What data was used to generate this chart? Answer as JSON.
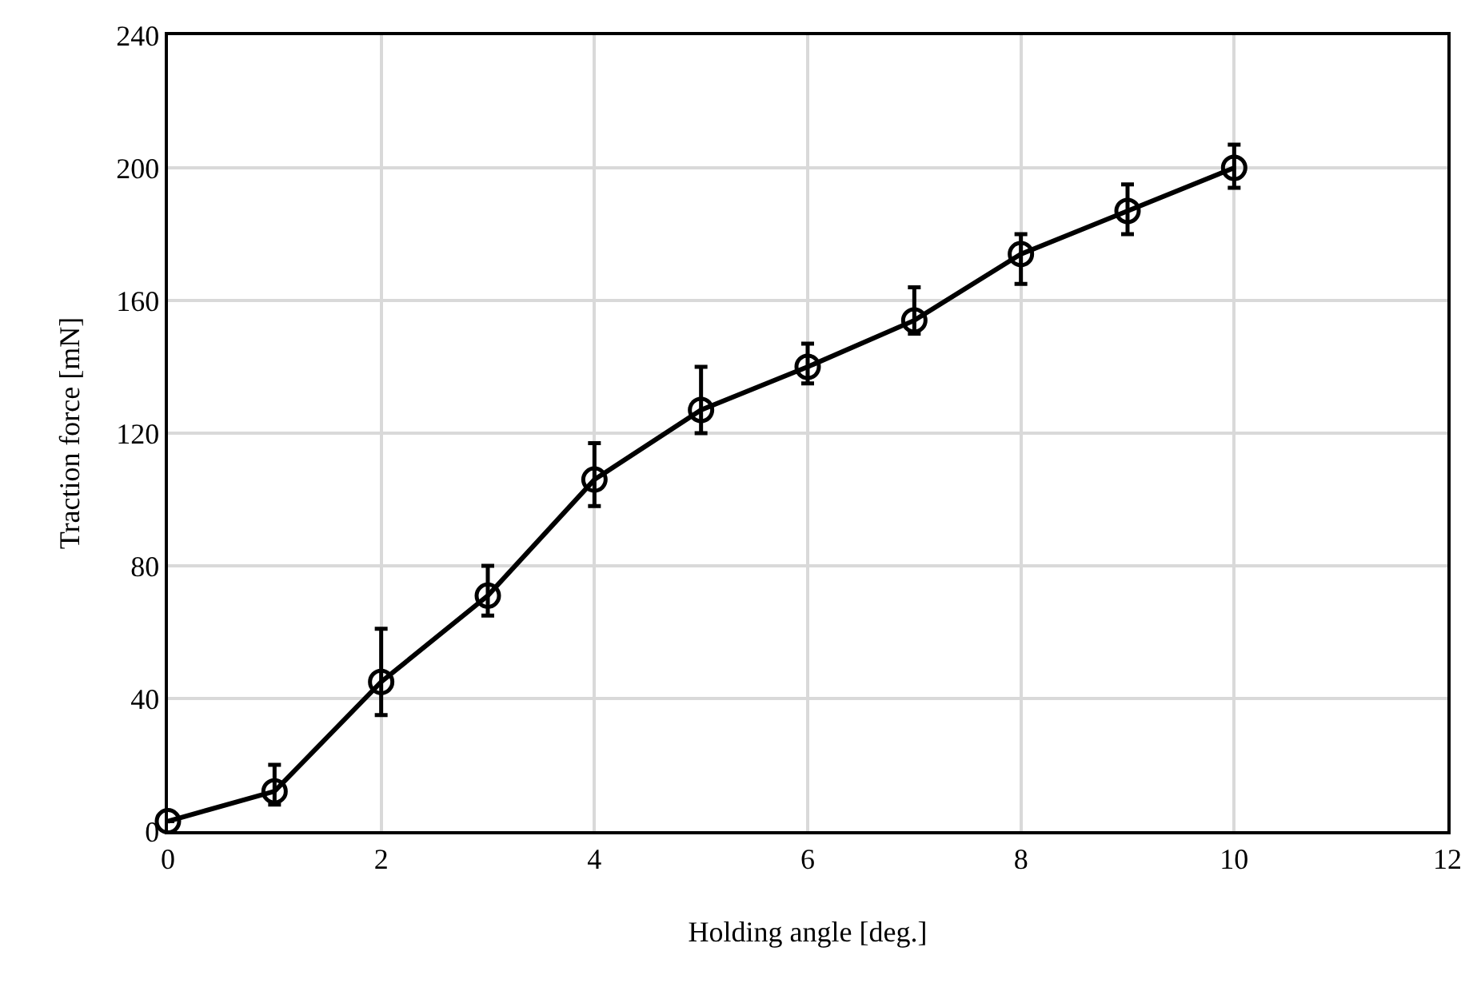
{
  "chart_data": {
    "type": "line",
    "xlabel": "Holding angle [deg.]",
    "ylabel": "Traction force [mN]",
    "x": [
      0,
      1,
      2,
      3,
      4,
      5,
      6,
      7,
      8,
      9,
      10
    ],
    "series": [
      {
        "color": "#000000",
        "values": [
          3,
          12,
          45,
          71,
          106,
          127,
          140,
          154,
          174,
          187,
          200
        ],
        "errors": [
          null,
          [
            8,
            20
          ],
          [
            35,
            61
          ],
          [
            65,
            80
          ],
          [
            98,
            117
          ],
          [
            120,
            140
          ],
          [
            135,
            147
          ],
          [
            150,
            164
          ],
          [
            165,
            180
          ],
          [
            180,
            195
          ],
          [
            194,
            207
          ]
        ]
      }
    ],
    "xlim": [
      0,
      12
    ],
    "xticks": [
      0,
      2,
      4,
      6,
      8,
      10,
      12
    ],
    "ylim": [
      0,
      240
    ],
    "yticks": [
      0,
      40,
      80,
      120,
      160,
      200,
      240
    ],
    "grid": true,
    "marker": "circle",
    "line_style": "solid"
  }
}
